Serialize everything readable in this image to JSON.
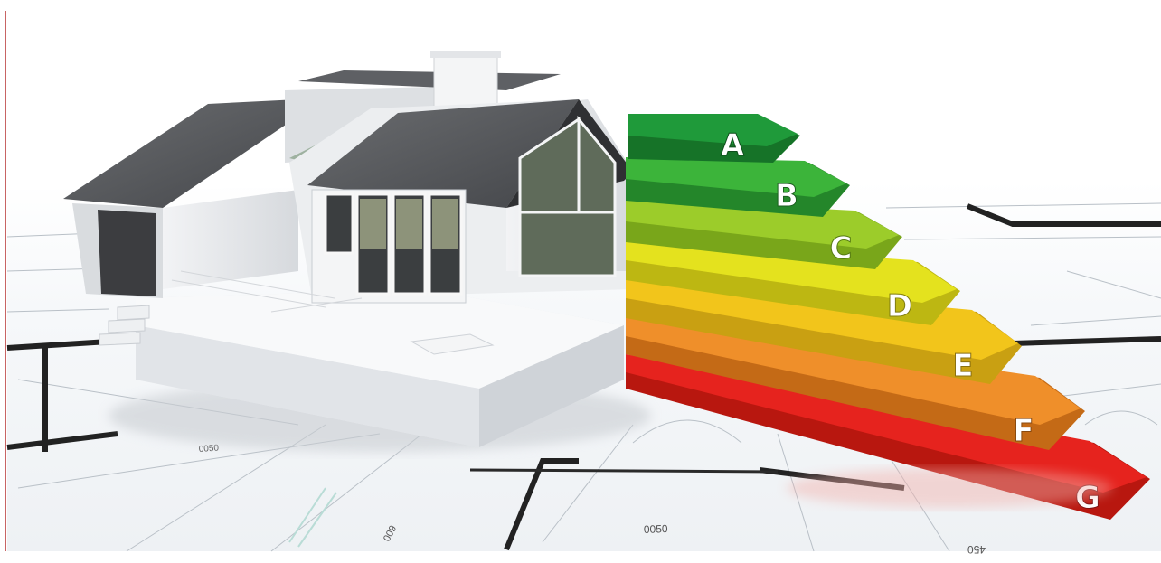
{
  "image": {
    "energy_ratings": {
      "labels": [
        "A",
        "B",
        "C",
        "D",
        "E",
        "F",
        "G"
      ],
      "colors": [
        "#1f9a3a",
        "#3cb43a",
        "#9ccc2a",
        "#e4e21e",
        "#f2c51b",
        "#ef8f2a",
        "#e6231e"
      ]
    },
    "blueprint_text": [
      "0050",
      "009",
      "450",
      "0050"
    ]
  }
}
